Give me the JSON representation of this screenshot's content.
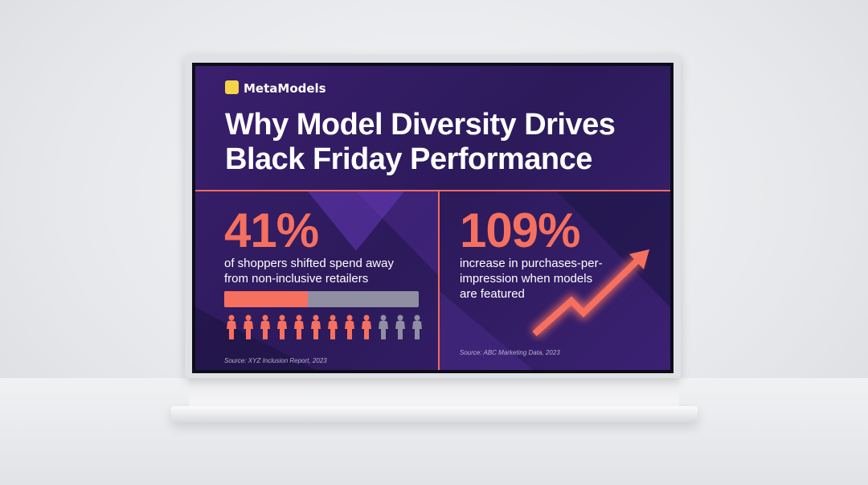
{
  "brand": "MetaModels",
  "title": [
    "Why Model Diversity Drives",
    "Black Friday Performance"
  ],
  "panels": [
    {
      "stat": "41%",
      "text": "of shoppers shifted spend away from non-inclusive retailers",
      "source": "Source: XYZ Inclusion Report, 2023"
    },
    {
      "stat": "109%",
      "text": "increase in purchases-per-impression when models are featured",
      "source": "Source: ABC Marketing Data, 2023"
    }
  ]
}
